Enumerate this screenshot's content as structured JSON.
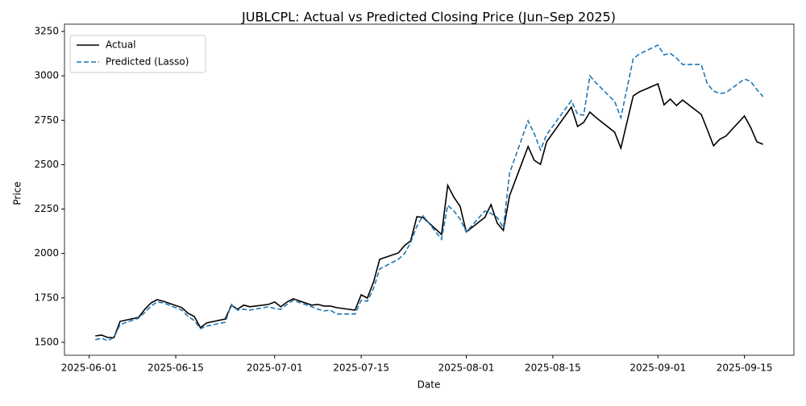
{
  "chart_data": {
    "type": "line",
    "title": "JUBLCPL: Actual vs Predicted Closing Price (Jun–Sep 2025)",
    "x_label": "Date",
    "y_label": "Price",
    "x": [
      "2025-06-02",
      "2025-06-03",
      "2025-06-04",
      "2025-06-05",
      "2025-06-06",
      "2025-06-09",
      "2025-06-10",
      "2025-06-11",
      "2025-06-12",
      "2025-06-13",
      "2025-06-16",
      "2025-06-17",
      "2025-06-18",
      "2025-06-19",
      "2025-06-20",
      "2025-06-23",
      "2025-06-24",
      "2025-06-25",
      "2025-06-26",
      "2025-06-27",
      "2025-06-30",
      "2025-07-01",
      "2025-07-02",
      "2025-07-03",
      "2025-07-04",
      "2025-07-07",
      "2025-07-08",
      "2025-07-09",
      "2025-07-10",
      "2025-07-11",
      "2025-07-14",
      "2025-07-15",
      "2025-07-16",
      "2025-07-17",
      "2025-07-18",
      "2025-07-21",
      "2025-07-22",
      "2025-07-23",
      "2025-07-24",
      "2025-07-25",
      "2025-07-28",
      "2025-07-29",
      "2025-07-30",
      "2025-07-31",
      "2025-08-01",
      "2025-08-04",
      "2025-08-05",
      "2025-08-06",
      "2025-08-07",
      "2025-08-08",
      "2025-08-11",
      "2025-08-12",
      "2025-08-13",
      "2025-08-14",
      "2025-08-18",
      "2025-08-19",
      "2025-08-20",
      "2025-08-21",
      "2025-08-22",
      "2025-08-25",
      "2025-08-26",
      "2025-08-28",
      "2025-08-29",
      "2025-09-01",
      "2025-09-02",
      "2025-09-03",
      "2025-09-04",
      "2025-09-05",
      "2025-09-08",
      "2025-09-09",
      "2025-09-10",
      "2025-09-11",
      "2025-09-12",
      "2025-09-15",
      "2025-09-16",
      "2025-09-17",
      "2025-09-18"
    ],
    "series": [
      {
        "name": "Actual",
        "color": "#000000",
        "linestyle": "solid",
        "values": [
          1536,
          1541,
          1527,
          1527,
          1618,
          1640,
          1686,
          1722,
          1740,
          1731,
          1695,
          1663,
          1645,
          1582,
          1609,
          1631,
          1709,
          1686,
          1709,
          1700,
          1713,
          1727,
          1700,
          1727,
          1745,
          1709,
          1713,
          1704,
          1704,
          1695,
          1681,
          1767,
          1749,
          1840,
          1967,
          2003,
          2044,
          2071,
          2207,
          2203,
          2107,
          2384,
          2316,
          2266,
          2121,
          2203,
          2275,
          2171,
          2130,
          2325,
          2602,
          2524,
          2502,
          2629,
          2824,
          2715,
          2738,
          2796,
          2765,
          2683,
          2593,
          2887,
          2910,
          2955,
          2837,
          2869,
          2833,
          2864,
          2783,
          2697,
          2606,
          2643,
          2661,
          2774,
          2710,
          2629,
          2615
        ]
      },
      {
        "name": "Predicted (Lasso)",
        "color": "#1f77b4",
        "linestyle": "dashed",
        "values": [
          1514,
          1523,
          1509,
          1527,
          1600,
          1636,
          1668,
          1704,
          1727,
          1722,
          1681,
          1645,
          1622,
          1577,
          1591,
          1613,
          1713,
          1681,
          1686,
          1681,
          1700,
          1690,
          1686,
          1713,
          1736,
          1700,
          1686,
          1677,
          1681,
          1659,
          1659,
          1736,
          1731,
          1804,
          1913,
          1967,
          1999,
          2062,
          2153,
          2212,
          2080,
          2271,
          2239,
          2194,
          2121,
          2239,
          2225,
          2203,
          2144,
          2452,
          2747,
          2674,
          2583,
          2669,
          2860,
          2783,
          2779,
          3000,
          2960,
          2856,
          2765,
          3096,
          3123,
          3173,
          3118,
          3127,
          3100,
          3064,
          3064,
          2955,
          2914,
          2901,
          2905,
          2982,
          2969,
          2923,
          2883
        ]
      }
    ],
    "xlim": [
      "2025-05-28",
      "2025-09-23"
    ],
    "xticks": [
      "2025-06-01",
      "2025-06-15",
      "2025-07-01",
      "2025-07-15",
      "2025-08-01",
      "2025-08-15",
      "2025-09-01",
      "2025-09-15"
    ],
    "ylim": [
      1427,
      3291
    ],
    "yticks": [
      1500,
      1750,
      2000,
      2250,
      2500,
      2750,
      3000,
      3250
    ],
    "legend": "upper left"
  }
}
